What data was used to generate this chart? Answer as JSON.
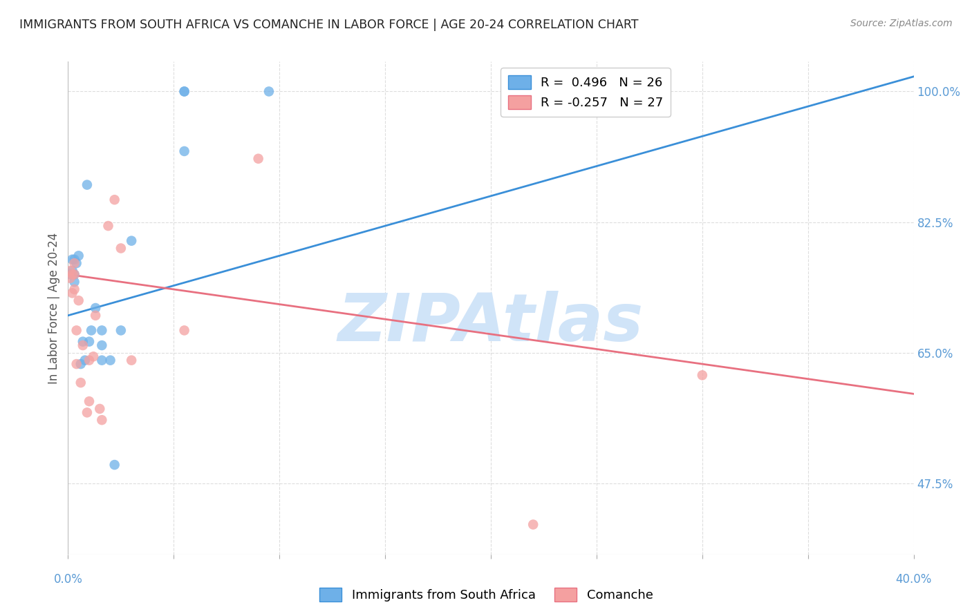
{
  "title": "IMMIGRANTS FROM SOUTH AFRICA VS COMANCHE IN LABOR FORCE | AGE 20-24 CORRELATION CHART",
  "source": "Source: ZipAtlas.com",
  "ylabel": "In Labor Force | Age 20-24",
  "ytick_labels": [
    "100.0%",
    "82.5%",
    "65.0%",
    "47.5%"
  ],
  "ytick_vals": [
    1.0,
    0.825,
    0.65,
    0.475
  ],
  "xtick_labels": [
    "0.0%",
    "",
    "",
    "",
    "",
    "",
    "",
    "",
    "40.0%"
  ],
  "xtick_vals": [
    0.0,
    0.05,
    0.1,
    0.15,
    0.2,
    0.25,
    0.3,
    0.35,
    0.4
  ],
  "xmin": 0.0,
  "xmax": 0.4,
  "ymin": 0.38,
  "ymax": 1.04,
  "legend_r1": "R =  0.496   N = 26",
  "legend_r2": "R = -0.257   N = 27",
  "watermark": "ZIPAtlas",
  "blue_scatter_x": [
    0.001,
    0.002,
    0.002,
    0.003,
    0.003,
    0.003,
    0.004,
    0.005,
    0.006,
    0.007,
    0.008,
    0.009,
    0.01,
    0.011,
    0.013,
    0.016,
    0.016,
    0.016,
    0.02,
    0.022,
    0.025,
    0.03,
    0.055,
    0.055,
    0.095,
    0.055
  ],
  "blue_scatter_y": [
    0.755,
    0.76,
    0.775,
    0.745,
    0.755,
    0.775,
    0.77,
    0.78,
    0.635,
    0.665,
    0.64,
    0.875,
    0.665,
    0.68,
    0.71,
    0.64,
    0.66,
    0.68,
    0.64,
    0.5,
    0.68,
    0.8,
    1.0,
    1.0,
    1.0,
    0.92
  ],
  "pink_scatter_x": [
    0.001,
    0.001,
    0.002,
    0.002,
    0.003,
    0.003,
    0.003,
    0.004,
    0.004,
    0.005,
    0.006,
    0.007,
    0.009,
    0.01,
    0.01,
    0.012,
    0.013,
    0.015,
    0.016,
    0.019,
    0.022,
    0.025,
    0.03,
    0.055,
    0.09,
    0.22,
    0.3
  ],
  "pink_scatter_y": [
    0.75,
    0.76,
    0.73,
    0.755,
    0.735,
    0.755,
    0.77,
    0.635,
    0.68,
    0.72,
    0.61,
    0.66,
    0.57,
    0.585,
    0.64,
    0.645,
    0.7,
    0.575,
    0.56,
    0.82,
    0.855,
    0.79,
    0.64,
    0.68,
    0.91,
    0.42,
    0.62
  ],
  "blue_line_x": [
    0.0,
    0.4
  ],
  "blue_line_y": [
    0.7,
    1.02
  ],
  "pink_line_x": [
    0.0,
    0.4
  ],
  "pink_line_y": [
    0.755,
    0.595
  ],
  "blue_color": "#6EB0E8",
  "pink_color": "#F4A0A0",
  "blue_line_color": "#3A8FD8",
  "pink_line_color": "#E87080",
  "grid_color": "#DDDDDD",
  "title_color": "#222222",
  "axis_label_color": "#5B9BD5",
  "watermark_color": "#D0E4F8",
  "background_color": "#FFFFFF"
}
